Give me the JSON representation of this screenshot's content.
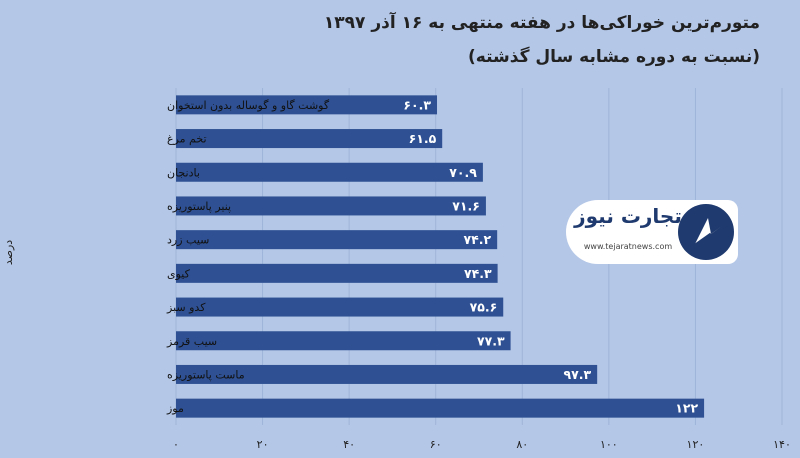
{
  "chart_data": {
    "type": "bar",
    "orientation": "horizontal",
    "title": "متورم‌ترین خوراکی‌ها در هفته منتهی به ۱۶ آذر ۱۳۹۷ (نسبت به دوره مشابه سال گذشته)",
    "ylabel": "درصد",
    "xlabel": "",
    "categories": [
      "گوشت گاو و گوساله بدون استخوان",
      "تخم مرغ",
      "بادنجان",
      "پنیر پاستوریزه",
      "سیب زرد",
      "کیوی",
      "کدو سبز",
      "سیب قرمز",
      "ماست پاستوریزه",
      "موز"
    ],
    "values": [
      60.3,
      61.5,
      70.9,
      71.6,
      74.2,
      74.3,
      75.6,
      77.3,
      97.3,
      122
    ],
    "value_labels": [
      "۶۰.۳",
      "۶۱.۵",
      "۷۰.۹",
      "۷۱.۶",
      "۷۴.۲",
      "۷۴.۳",
      "۷۵.۶",
      "۷۷.۳",
      "۹۷.۳",
      "۱۲۲"
    ],
    "ticks": [
      0,
      20,
      40,
      60,
      80,
      100,
      120,
      140
    ],
    "tick_labels": [
      "۰",
      "۲۰",
      "۴۰",
      "۶۰",
      "۸۰",
      "۱۰۰",
      "۱۲۰",
      "۱۴۰"
    ],
    "xlim": [
      0,
      140
    ],
    "grid": true,
    "bar_color": "#2f5193",
    "background_color": "#b4c7e7"
  },
  "logo": {
    "name": "تجارت نیوز",
    "url": "www.tejaratnews.com"
  }
}
